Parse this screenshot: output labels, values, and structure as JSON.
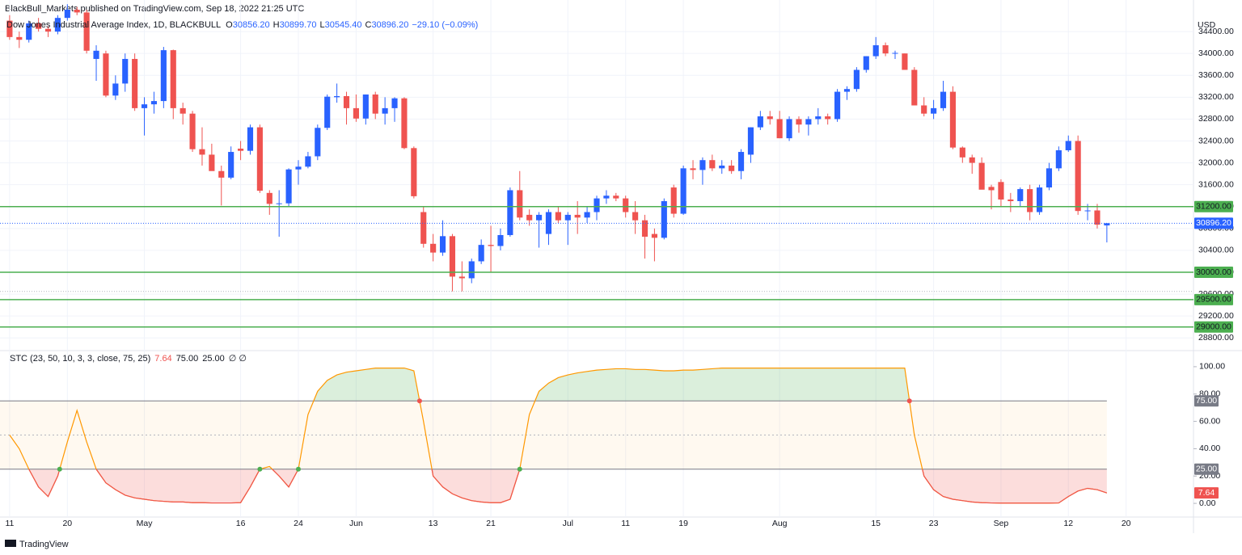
{
  "header": {
    "published": "BlackBull_Markets published on TradingView.com, Sep 18, 2022 21:25 UTC"
  },
  "footer": {
    "brand": "TradingView"
  },
  "chart_data": [
    {
      "type": "candlestick",
      "title": "Dow Jones Industrial Average Index, 1D, BLACKBULL",
      "ohlc_legend": [
        {
          "key": "O",
          "value": "30856.20"
        },
        {
          "key": "H",
          "value": "30899.70"
        },
        {
          "key": "L",
          "value": "30545.40"
        },
        {
          "key": "C",
          "value": "30896.20"
        }
      ],
      "change": "−29.10 (−0.09%)",
      "currency": "USD",
      "colors": {
        "up": "#2962ff",
        "down": "#ef5350"
      },
      "candles": [
        [
          34600,
          34700,
          34250,
          34300
        ],
        [
          34300,
          34400,
          34100,
          34250
        ],
        [
          34250,
          34600,
          34200,
          34550
        ],
        [
          34550,
          34650,
          34400,
          34450
        ],
        [
          34450,
          34500,
          34300,
          34400
        ],
        [
          34400,
          34700,
          34350,
          34650
        ],
        [
          34650,
          34900,
          34600,
          34800
        ],
        [
          34800,
          34850,
          34700,
          34750
        ],
        [
          34750,
          34800,
          34000,
          34050
        ],
        [
          33900,
          34150,
          33500,
          34050
        ],
        [
          34000,
          34050,
          33200,
          33230
        ],
        [
          33230,
          33600,
          33150,
          33450
        ],
        [
          33450,
          34000,
          33300,
          33900
        ],
        [
          33900,
          34000,
          32950,
          33000
        ],
        [
          33000,
          33200,
          32500,
          33070
        ],
        [
          33070,
          33300,
          32900,
          33130
        ],
        [
          33130,
          34120,
          33000,
          34060
        ],
        [
          34060,
          34070,
          32800,
          33000
        ],
        [
          33000,
          33100,
          32700,
          32900
        ],
        [
          32900,
          32950,
          32200,
          32250
        ],
        [
          32250,
          32650,
          31950,
          32150
        ],
        [
          32150,
          32350,
          31900,
          31850
        ],
        [
          31850,
          31950,
          31220,
          31730
        ],
        [
          31730,
          32300,
          31700,
          32200
        ],
        [
          32260,
          32400,
          32050,
          32220
        ],
        [
          32220,
          32700,
          32150,
          32650
        ],
        [
          32650,
          32700,
          31450,
          31490
        ],
        [
          31450,
          31500,
          31050,
          31250
        ],
        [
          31250,
          31500,
          30650,
          31260
        ],
        [
          31260,
          31900,
          31200,
          31880
        ],
        [
          31880,
          32050,
          31600,
          31930
        ],
        [
          31930,
          32200,
          31900,
          32120
        ],
        [
          32120,
          32700,
          32050,
          32640
        ],
        [
          32640,
          33250,
          32600,
          33210
        ],
        [
          33200,
          33450,
          33100,
          33220
        ],
        [
          33220,
          33300,
          32700,
          33000
        ],
        [
          33000,
          33250,
          32750,
          32810
        ],
        [
          32810,
          33250,
          32700,
          33250
        ],
        [
          33250,
          33300,
          32800,
          32900
        ],
        [
          32900,
          33200,
          32700,
          33000
        ],
        [
          33000,
          33200,
          32750,
          33180
        ],
        [
          33180,
          33200,
          32250,
          32270
        ],
        [
          32270,
          32300,
          31350,
          31390
        ],
        [
          31100,
          31200,
          30450,
          30520
        ],
        [
          30520,
          30700,
          30200,
          30360
        ],
        [
          30360,
          30950,
          30300,
          30660
        ],
        [
          30660,
          30700,
          29650,
          29920
        ],
        [
          29920,
          30200,
          29650,
          29890
        ],
        [
          29890,
          30250,
          29800,
          30200
        ],
        [
          30200,
          30600,
          30150,
          30500
        ],
        [
          30500,
          30850,
          30000,
          30480
        ],
        [
          30480,
          30800,
          30400,
          30680
        ],
        [
          30680,
          31550,
          30650,
          31500
        ],
        [
          31500,
          31850,
          30950,
          31000
        ],
        [
          31050,
          31150,
          30850,
          30950
        ],
        [
          30950,
          31100,
          30450,
          31050
        ],
        [
          30700,
          31150,
          30500,
          31100
        ],
        [
          31100,
          31200,
          30900,
          30950
        ],
        [
          30950,
          31100,
          30500,
          31050
        ],
        [
          31050,
          31300,
          30700,
          31000
        ],
        [
          31000,
          31200,
          30900,
          31100
        ],
        [
          31100,
          31400,
          30950,
          31350
        ],
        [
          31350,
          31500,
          31250,
          31400
        ],
        [
          31400,
          31450,
          31300,
          31350
        ],
        [
          31350,
          31400,
          31000,
          31100
        ],
        [
          31100,
          31300,
          30700,
          30950
        ],
        [
          30950,
          31050,
          30250,
          30650
        ],
        [
          30700,
          30800,
          30200,
          30630
        ],
        [
          30630,
          31350,
          30600,
          31300
        ],
        [
          31550,
          31600,
          31000,
          31070
        ],
        [
          31070,
          31950,
          31050,
          31900
        ],
        [
          31900,
          32050,
          31700,
          31870
        ],
        [
          31870,
          32100,
          31600,
          32050
        ],
        [
          32050,
          32150,
          31850,
          31900
        ],
        [
          31900,
          32050,
          31800,
          31950
        ],
        [
          31950,
          32050,
          31800,
          31850
        ],
        [
          31850,
          32250,
          31700,
          32200
        ],
        [
          32150,
          32650,
          32000,
          32650
        ],
        [
          32650,
          32950,
          32600,
          32850
        ],
        [
          32850,
          32950,
          32700,
          32800
        ],
        [
          32800,
          32950,
          32450,
          32450
        ],
        [
          32450,
          32850,
          32400,
          32800
        ],
        [
          32800,
          32850,
          32550,
          32700
        ],
        [
          32700,
          32850,
          32500,
          32800
        ],
        [
          32800,
          33000,
          32700,
          32850
        ],
        [
          32850,
          32900,
          32700,
          32800
        ],
        [
          32800,
          33350,
          32750,
          33300
        ],
        [
          33300,
          33400,
          33150,
          33350
        ],
        [
          33350,
          33750,
          33300,
          33700
        ],
        [
          33700,
          33950,
          33650,
          33950
        ],
        [
          33950,
          34300,
          33900,
          34150
        ],
        [
          34150,
          34200,
          33950,
          34000
        ],
        [
          34000,
          34050,
          33900,
          34010
        ],
        [
          34000,
          34000,
          33700,
          33700
        ],
        [
          33700,
          33750,
          33050,
          33050
        ],
        [
          33050,
          33200,
          32850,
          32900
        ],
        [
          32900,
          33150,
          32800,
          33000
        ],
        [
          33000,
          33500,
          32950,
          33300
        ],
        [
          33300,
          33400,
          32250,
          32280
        ],
        [
          32280,
          32300,
          32000,
          32100
        ],
        [
          32100,
          32150,
          31800,
          32000
        ],
        [
          32000,
          32100,
          31550,
          31510
        ],
        [
          31560,
          31600,
          31150,
          31500
        ],
        [
          31650,
          31700,
          31200,
          31330
        ],
        [
          31330,
          31450,
          31100,
          31300
        ],
        [
          31300,
          31550,
          31200,
          31520
        ],
        [
          31520,
          31600,
          30950,
          31100
        ],
        [
          31100,
          31600,
          31050,
          31550
        ],
        [
          31550,
          32000,
          31500,
          31900
        ],
        [
          31900,
          32300,
          31850,
          32230
        ],
        [
          32230,
          32500,
          32200,
          32400
        ],
        [
          32400,
          32500,
          31050,
          31120
        ],
        [
          31120,
          31250,
          30950,
          31130
        ],
        [
          31130,
          31250,
          30800,
          30870
        ],
        [
          30856.2,
          30899.7,
          30545.4,
          30896.2
        ]
      ],
      "xlim": [
        -1,
        123
      ],
      "xticks": [
        {
          "value": 0,
          "label": "11"
        },
        {
          "value": 6,
          "label": "20"
        },
        {
          "value": 14,
          "label": "May"
        },
        {
          "value": 24,
          "label": "16"
        },
        {
          "value": 30,
          "label": "24"
        },
        {
          "value": 36,
          "label": "Jun"
        },
        {
          "value": 44,
          "label": "13"
        },
        {
          "value": 50,
          "label": "21"
        },
        {
          "value": 58,
          "label": "Jul"
        },
        {
          "value": 64,
          "label": "11"
        },
        {
          "value": 70,
          "label": "19"
        },
        {
          "value": 80,
          "label": "Aug"
        },
        {
          "value": 90,
          "label": "15"
        },
        {
          "value": 96,
          "label": "23"
        },
        {
          "value": 103,
          "label": "Sep"
        },
        {
          "value": 110,
          "label": "12"
        },
        {
          "value": 116,
          "label": "20"
        }
      ],
      "ylim": [
        28597,
        34682
      ],
      "yticks": [
        {
          "value": 28800,
          "label": "28800.00"
        },
        {
          "value": 29200,
          "label": "29200.00"
        },
        {
          "value": 29600,
          "label": "29600.00"
        },
        {
          "value": 30000,
          "label": "30000.00"
        },
        {
          "value": 30400,
          "label": "30400.00"
        },
        {
          "value": 30800,
          "label": "30800.00"
        },
        {
          "value": 31200,
          "label": "31200.00"
        },
        {
          "value": 31600,
          "label": "31600.00"
        },
        {
          "value": 32000,
          "label": "32000.00"
        },
        {
          "value": 32400,
          "label": "32400.00"
        },
        {
          "value": 32800,
          "label": "32800.00"
        },
        {
          "value": 33200,
          "label": "33200.00"
        },
        {
          "value": 33600,
          "label": "33600.00"
        },
        {
          "value": 34000,
          "label": "34000.00"
        },
        {
          "value": 34400,
          "label": "34400.00"
        }
      ],
      "levels": [
        {
          "value": 31200,
          "label": "31200.00"
        },
        {
          "value": 30000,
          "label": "30000.00"
        },
        {
          "value": 29500,
          "label": "29500.00"
        },
        {
          "value": 29000,
          "label": "29000.00"
        }
      ],
      "level_color": "#4caf50",
      "last_price": {
        "value": 30896.2,
        "label": "30896.20"
      },
      "support_line": 29650
    },
    {
      "type": "oscillator",
      "title": "STC (23, 50, 10, 3, 3, close, 75, 25)",
      "legend_values": [
        "7.64",
        "75.00",
        "25.00"
      ],
      "legend_extra": "∅ ∅",
      "values": [
        50,
        40,
        25,
        12,
        5,
        20,
        45,
        68,
        45,
        25,
        15,
        10,
        6,
        4,
        3,
        2,
        1.5,
        1,
        1,
        0.5,
        0.5,
        0.3,
        0.3,
        0.3,
        0.5,
        12,
        25,
        27,
        20,
        12,
        25,
        65,
        82,
        90,
        94,
        96,
        97,
        98,
        99,
        99,
        99,
        99,
        97,
        60,
        20,
        12,
        7,
        4,
        2,
        1,
        0.5,
        0.5,
        3,
        25,
        65,
        82,
        88,
        92,
        94,
        95.5,
        96.5,
        97.5,
        98,
        98.5,
        98.5,
        98,
        98,
        97.5,
        97,
        97,
        97.5,
        97.5,
        98,
        98.5,
        99,
        99,
        99,
        99,
        99,
        99,
        99,
        99,
        99,
        99,
        99,
        99,
        99,
        99,
        99,
        99,
        99,
        99,
        99,
        99,
        50,
        20,
        10,
        5,
        3,
        2,
        1,
        0.5,
        0.3,
        0.2,
        0.2,
        0.2,
        0.2,
        0.2,
        0.2,
        0.3,
        5,
        9,
        11,
        10,
        7.64
      ],
      "ylim": [
        -10,
        110
      ],
      "yticks": [
        {
          "value": 0,
          "label": "0.00"
        },
        {
          "value": 20,
          "label": "20.00"
        },
        {
          "value": 40,
          "label": "40.00"
        },
        {
          "value": 60,
          "label": "60.00"
        },
        {
          "value": 80,
          "label": "80.00"
        },
        {
          "value": 100,
          "label": "100.00"
        }
      ],
      "upper": {
        "value": 75,
        "label": "75.00"
      },
      "lower": {
        "value": 25,
        "label": "25.00"
      },
      "midline": 50,
      "last": {
        "value": 7.64,
        "label": "7.64"
      },
      "line_color": "#ff9800",
      "low_color": "#ef5350",
      "signal_up": "#4caf50",
      "signal_down": "#ef5350"
    }
  ]
}
